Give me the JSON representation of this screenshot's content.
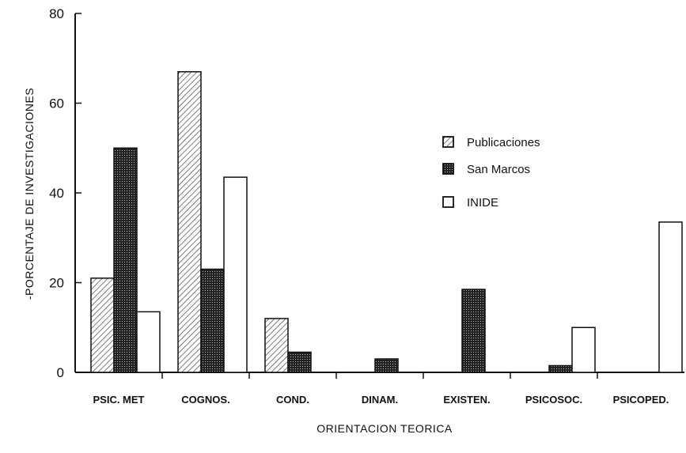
{
  "chart_data": {
    "type": "bar",
    "categories": [
      "PSIC. MET",
      "COGNOS.",
      "COND.",
      "DINAM.",
      "EXISTEN.",
      "PSICOSOC.",
      "PSICOPED."
    ],
    "series": [
      {
        "name": "Publicaciones",
        "values": [
          21,
          67,
          12,
          0,
          0,
          0,
          0
        ],
        "pattern": "hatch"
      },
      {
        "name": "San Marcos",
        "values": [
          50,
          23,
          4.5,
          3,
          18.5,
          1.5,
          0
        ],
        "pattern": "dense-grid"
      },
      {
        "name": "INIDE",
        "values": [
          13.5,
          43.5,
          0,
          0,
          0,
          10,
          33.5
        ],
        "pattern": "empty"
      }
    ],
    "xlabel": "ORIENTACION TEORICA",
    "ylabel": "-PORCENTAJE DE INVESTIGACIONES",
    "ylim": [
      0,
      80
    ],
    "yticks": [
      0,
      20,
      40,
      60,
      80
    ],
    "grid": false,
    "legend_position": "right"
  }
}
